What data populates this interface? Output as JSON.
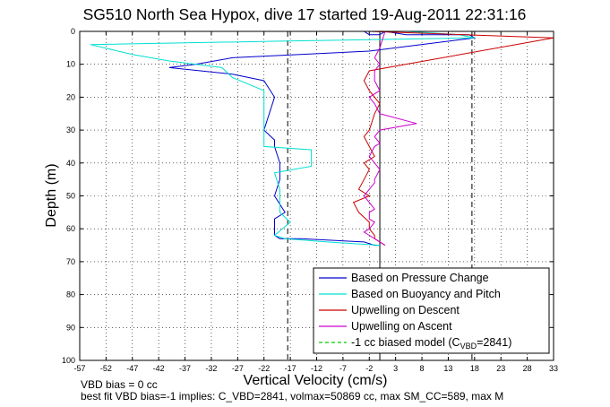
{
  "chart_data": {
    "type": "line",
    "title": "SG510 North Sea Hypox, dive 17 started 19-Aug-2011 22:31:16",
    "xlabel": "Vertical Velocity (cm/s)",
    "ylabel": "Depth (m)",
    "xlim": [
      -57,
      33
    ],
    "ylim": [
      0,
      100
    ],
    "y_reversed": true,
    "grid": true,
    "xticks": [
      "-57",
      "-52",
      "-47",
      "-42",
      "-37",
      "-32",
      "-27",
      "-22",
      "-17",
      "-12",
      "-7",
      "-2",
      "3",
      "8",
      "13",
      "18",
      "23",
      "28",
      "33"
    ],
    "yticks": [
      "0",
      "10",
      "20",
      "30",
      "40",
      "50",
      "60",
      "70",
      "80",
      "90",
      "100"
    ],
    "legend_position": "bottom-right",
    "vlines": [
      {
        "x": -17.5,
        "style": "dashed",
        "color": "#000000"
      },
      {
        "x": 17.5,
        "style": "dashed",
        "color": "#000000"
      },
      {
        "x": 0,
        "style": "solid",
        "color": "#000000"
      }
    ],
    "series": [
      {
        "name": "Based on Pressure Change",
        "color": "#0000cc",
        "x": [
          -3,
          -2,
          -1,
          0,
          1,
          5,
          10,
          17,
          18,
          -2,
          -28,
          -35,
          -40,
          -28,
          -22,
          -20,
          -21,
          -22,
          -20,
          -20,
          -19,
          -19,
          -20,
          -18,
          -20,
          -20,
          -20,
          -19,
          -15,
          -3,
          -1,
          0
        ],
        "y": [
          0,
          1,
          1,
          1,
          0,
          1,
          1,
          1,
          2,
          6,
          8,
          10,
          11,
          13,
          15,
          20,
          25,
          30,
          33,
          35,
          40,
          45,
          50,
          55,
          57,
          60,
          62,
          63,
          63,
          64,
          65,
          65
        ]
      },
      {
        "name": "Based on Buoyancy and Pitch",
        "color": "#00e0d0",
        "x": [
          0,
          1,
          5,
          15,
          18,
          -20,
          -55,
          -47,
          -40,
          -30,
          -28,
          -22,
          -22,
          -22,
          -22,
          -13,
          -13,
          -20,
          -19,
          -19,
          -19,
          -17,
          -20,
          -18,
          -10,
          0
        ],
        "y": [
          0,
          0,
          0,
          1,
          2,
          3,
          4,
          7,
          9,
          11,
          14,
          18,
          22,
          30,
          35,
          36,
          41,
          43,
          48,
          52,
          55,
          58,
          62,
          63,
          64,
          65
        ]
      },
      {
        "name": "Upwelling on Descent",
        "color": "#cc0000",
        "x": [
          -2,
          33,
          -2,
          -3,
          -2,
          0,
          -1,
          -2,
          -3,
          -2,
          -1,
          -3,
          -2,
          -3,
          -4,
          -2,
          -5,
          -4,
          -2,
          -2,
          -1,
          -1,
          0,
          1
        ],
        "y": [
          0,
          2,
          12,
          15,
          18,
          22,
          25,
          30,
          32,
          35,
          38,
          40,
          42,
          45,
          48,
          50,
          52,
          55,
          58,
          60,
          62,
          63,
          64,
          65
        ]
      },
      {
        "name": "Upwelling on Ascent",
        "color": "#cc00cc",
        "x": [
          1,
          0,
          -1,
          0,
          -1,
          -1,
          0,
          -2,
          -1,
          0,
          7,
          0,
          -1,
          0,
          -1,
          -2,
          -1,
          0,
          -1,
          -1,
          -2,
          -3,
          -2,
          -1,
          -2,
          -2,
          -1,
          -2,
          -3,
          -2,
          -1,
          0,
          1
        ],
        "y": [
          0,
          5,
          8,
          10,
          12,
          15,
          18,
          20,
          22,
          25,
          28,
          30,
          32,
          34,
          35,
          38,
          40,
          42,
          45,
          46,
          48,
          50,
          52,
          54,
          55,
          57,
          58,
          60,
          61,
          62,
          63,
          64,
          65
        ]
      },
      {
        "name": "-1 cc biased model (C_VBD=2841)",
        "color": "#00cc00",
        "style": "dashed",
        "x": [],
        "y": []
      }
    ]
  },
  "legend_items": [
    {
      "text": "Based on Pressure Change",
      "color": "#0000cc",
      "dash": false
    },
    {
      "text": "Based on Buoyancy and Pitch",
      "color": "#00e0d0",
      "dash": false
    },
    {
      "text": "Upwelling on Descent",
      "color": "#cc0000",
      "dash": false
    },
    {
      "text": "Upwelling on Ascent",
      "color": "#cc00cc",
      "dash": false
    },
    {
      "text": "-1 cc biased model (C",
      "sub": "VBD",
      "tail": "=2841)",
      "color": "#00cc00",
      "dash": true
    }
  ],
  "notes": {
    "vbd_bias": "VBD bias = 0 cc",
    "best_fit": "best fit VBD bias=-1 implies: C_VBD=2841, volmax=50869 cc, max SM_CC=589, max M"
  }
}
